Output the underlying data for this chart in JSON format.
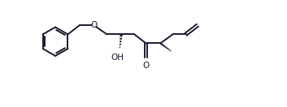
{
  "background": "#ffffff",
  "line_color": "#1a1a2e",
  "line_width": 1.4,
  "figsize": [
    3.53,
    1.32
  ],
  "dpi": 100,
  "xlim": [
    0,
    11.5
  ],
  "ylim": [
    -1.8,
    3.5
  ]
}
